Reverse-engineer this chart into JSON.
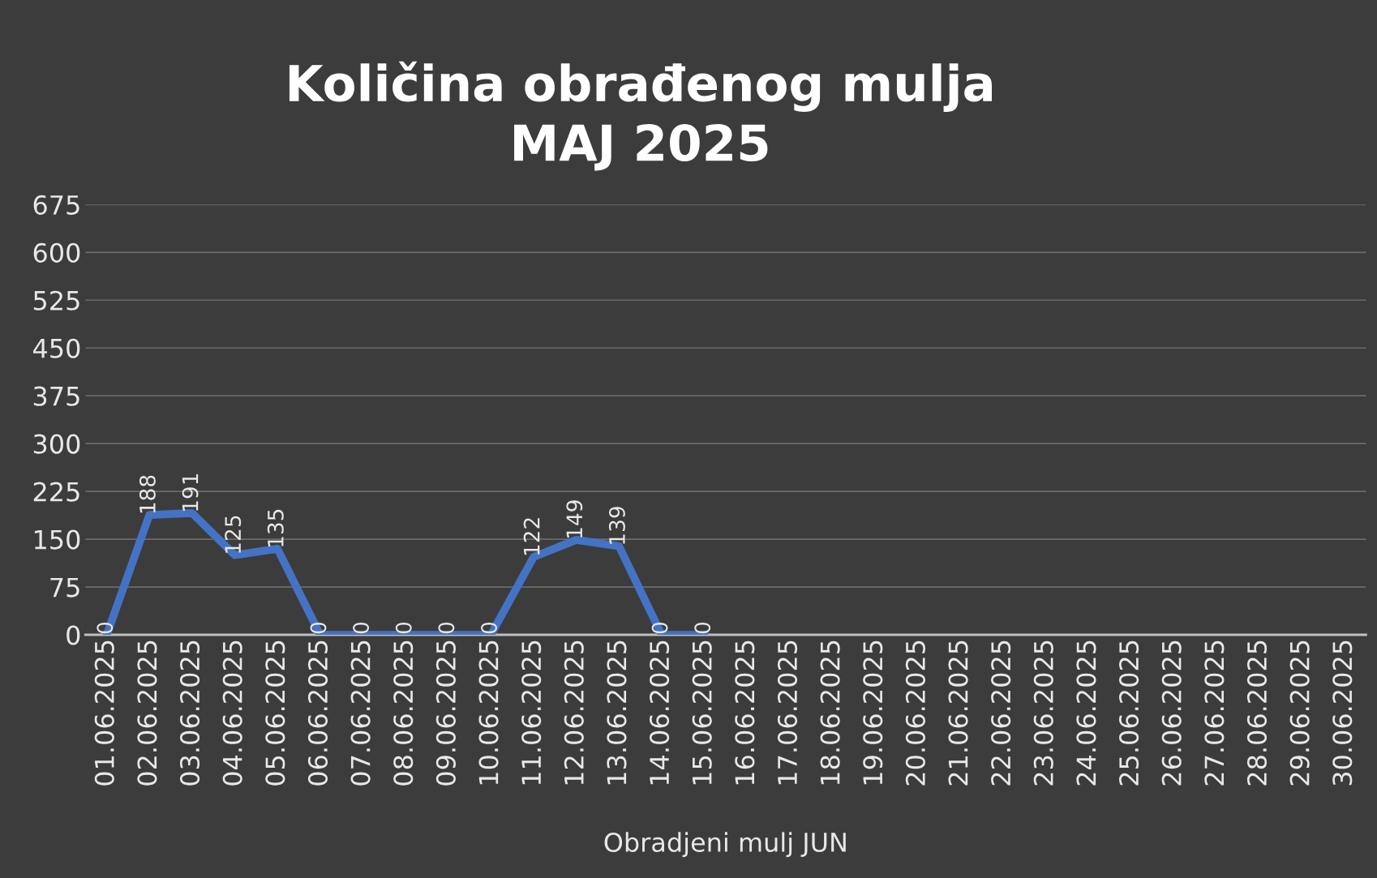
{
  "chart_data": {
    "type": "line",
    "title": "Količina obrađenog mulja\nMAJ 2025",
    "xlabel": "Obradjeni mulj JUN",
    "categories": [
      "01.06.2025",
      "02.06.2025",
      "03.06.2025",
      "04.06.2025",
      "05.06.2025",
      "06.06.2025",
      "07.06.2025",
      "08.06.2025",
      "09.06.2025",
      "10.06.2025",
      "11.06.2025",
      "12.06.2025",
      "13.06.2025",
      "14.06.2025",
      "15.06.2025",
      "16.06.2025",
      "17.06.2025",
      "18.06.2025",
      "19.06.2025",
      "20.06.2025",
      "21.06.2025",
      "22.06.2025",
      "23.06.2025",
      "24.06.2025",
      "25.06.2025",
      "26.06.2025",
      "27.06.2025",
      "28.06.2025",
      "29.06.2025",
      "30.06.2025"
    ],
    "series": [
      {
        "color": "#4472c4",
        "values": [
          0,
          188,
          191,
          125,
          135,
          0,
          0,
          0,
          0,
          0,
          122,
          149,
          139,
          0,
          0,
          null,
          null,
          null,
          null,
          null,
          null,
          null,
          null,
          null,
          null,
          null,
          null,
          null,
          null,
          null
        ]
      }
    ],
    "ylim": [
      0,
      675
    ],
    "yticks": [
      0,
      75,
      150,
      225,
      300,
      375,
      450,
      525,
      600,
      675
    ],
    "grid": "y",
    "data_labels": true,
    "marker": "none",
    "line_style": "solid"
  }
}
